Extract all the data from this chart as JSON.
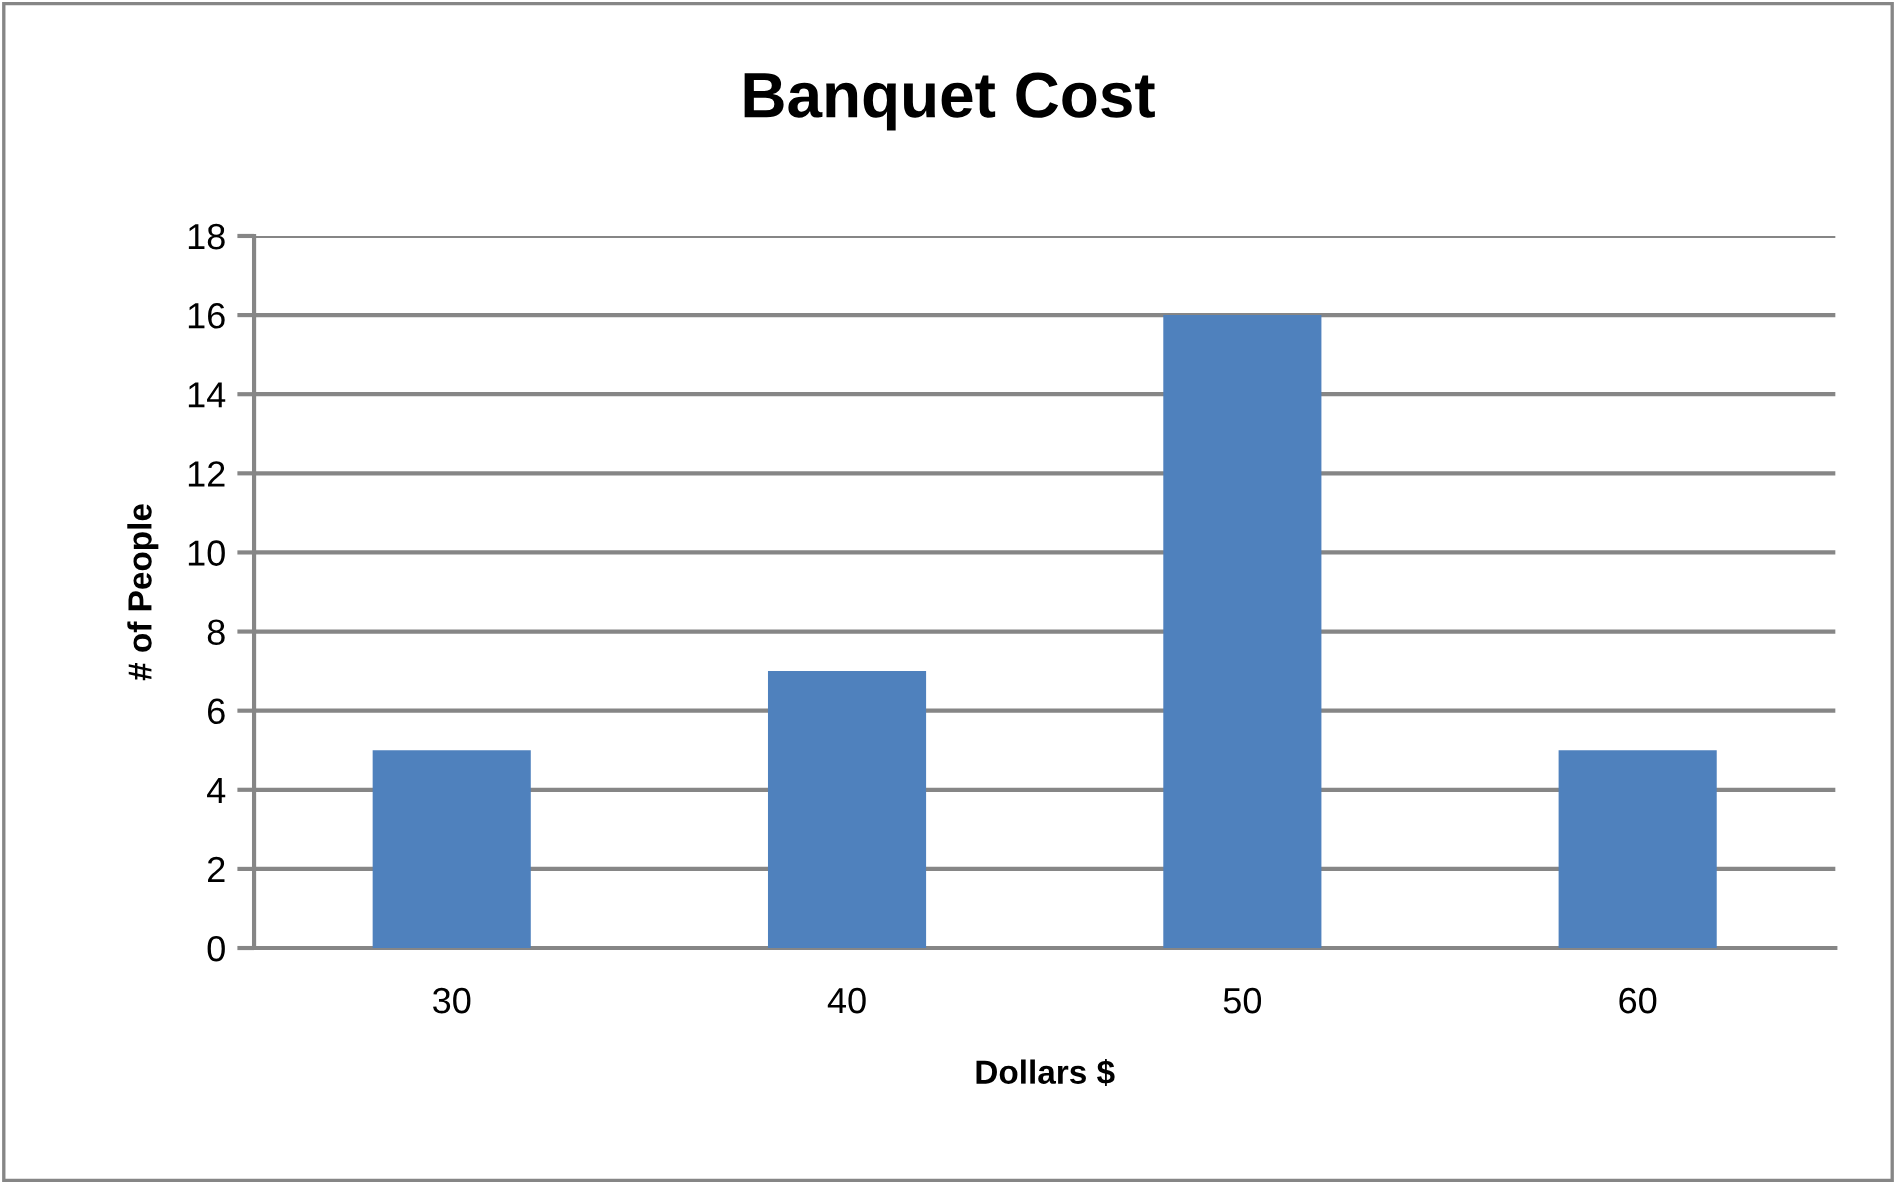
{
  "chart_data": {
    "type": "bar",
    "title": "Banquet Cost",
    "xlabel": "Dollars $",
    "ylabel": "# of People",
    "categories": [
      "30",
      "40",
      "50",
      "60"
    ],
    "values": [
      5,
      7,
      16,
      5
    ],
    "color": "#4f81bd",
    "ylim": [
      0,
      18
    ],
    "yticks": [
      0,
      2,
      4,
      6,
      8,
      10,
      12,
      14,
      16,
      18
    ],
    "grid": "y",
    "legend": false
  }
}
